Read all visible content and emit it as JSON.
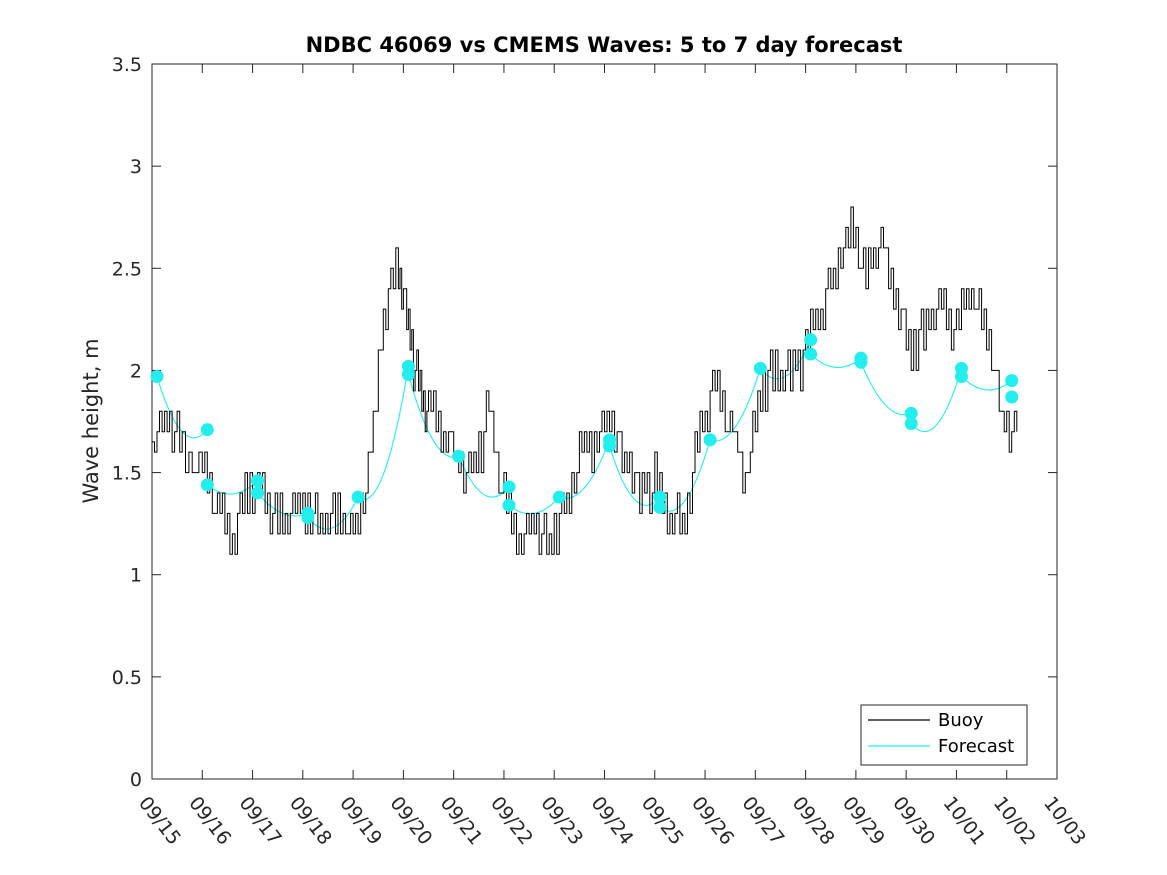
{
  "chart_data": {
    "type": "line",
    "title": "NDBC 46069 vs CMEMS Waves: 5 to 7 day forecast",
    "xlabel": "",
    "ylabel": "Wave height, m",
    "xlim": [
      0,
      18
    ],
    "ylim": [
      0,
      3.5
    ],
    "x_tick_labels": [
      "09/15",
      "09/16",
      "09/17",
      "09/18",
      "09/19",
      "09/20",
      "09/21",
      "09/22",
      "09/23",
      "09/24",
      "09/25",
      "09/26",
      "09/27",
      "09/28",
      "09/29",
      "09/30",
      "10/01",
      "10/02",
      "10/03"
    ],
    "y_ticks": [
      0,
      0.5,
      1,
      1.5,
      2,
      2.5,
      3,
      3.5
    ],
    "y_tick_labels": [
      "0",
      "0.5",
      "1",
      "1.5",
      "2",
      "2.5",
      "3",
      "3.5"
    ],
    "legend": {
      "position": "bottom-right",
      "entries": [
        {
          "label": "Buoy",
          "color": "#000000"
        },
        {
          "label": "Forecast",
          "color": "#00ffff"
        }
      ]
    },
    "colors": {
      "buoy": "#000000",
      "forecast": "#22eeee",
      "axis": "#262626"
    },
    "series": [
      {
        "name": "Buoy",
        "x": [
          0,
          0.3,
          0.6,
          1,
          1.3,
          1.6,
          1.9,
          2.2,
          2.5,
          2.8,
          3.1,
          3.4,
          3.7,
          4,
          4.3,
          4.6,
          4.9,
          5.1,
          5.3,
          5.5,
          5.8,
          6.1,
          6.4,
          6.7,
          7,
          7.3,
          7.6,
          7.9,
          8.2,
          8.5,
          8.8,
          9.1,
          9.4,
          9.7,
          10,
          10.3,
          10.6,
          10.9,
          11.2,
          11.5,
          11.8,
          12.1,
          12.4,
          12.7,
          13,
          13.3,
          13.6,
          13.9,
          14.2,
          14.5,
          14.8,
          15.1,
          15.4,
          15.7,
          16,
          16.3,
          16.6,
          16.9,
          17.2
        ],
        "y": [
          1.65,
          1.75,
          1.6,
          1.5,
          1.3,
          1.2,
          1.45,
          1.4,
          1.25,
          1.3,
          1.35,
          1.25,
          1.3,
          1.2,
          1.45,
          2.3,
          2.55,
          2.2,
          1.9,
          1.8,
          1.7,
          1.55,
          1.5,
          1.8,
          1.35,
          1.2,
          1.25,
          1.15,
          1.3,
          1.55,
          1.65,
          1.8,
          1.55,
          1.4,
          1.45,
          1.3,
          1.25,
          1.7,
          1.95,
          1.7,
          1.5,
          1.9,
          2.0,
          1.95,
          2.1,
          2.3,
          2.5,
          2.7,
          2.45,
          2.6,
          2.35,
          2.1,
          2.2,
          2.3,
          2.2,
          2.4,
          2.2,
          1.75,
          1.7
        ]
      }
    ],
    "forecast_marker_points": {
      "x": [
        0.1,
        1.1,
        1.1,
        2.1,
        2.1,
        3.1,
        3.1,
        4.1,
        5.1,
        5.1,
        6.1,
        7.1,
        7.1,
        8.1,
        9.1,
        9.1,
        10.1,
        10.1,
        11.1,
        12.1,
        13.1,
        13.1,
        14.1,
        14.1,
        15.1,
        15.1,
        16.1,
        16.1,
        17.1,
        17.1
      ],
      "y": [
        1.97,
        1.71,
        1.44,
        1.46,
        1.4,
        1.3,
        1.28,
        1.38,
        2.02,
        1.98,
        1.58,
        1.43,
        1.34,
        1.38,
        1.66,
        1.63,
        1.38,
        1.33,
        1.66,
        2.01,
        2.15,
        2.08,
        2.06,
        2.04,
        1.79,
        1.74,
        2.01,
        1.97,
        1.95,
        1.87
      ]
    }
  }
}
